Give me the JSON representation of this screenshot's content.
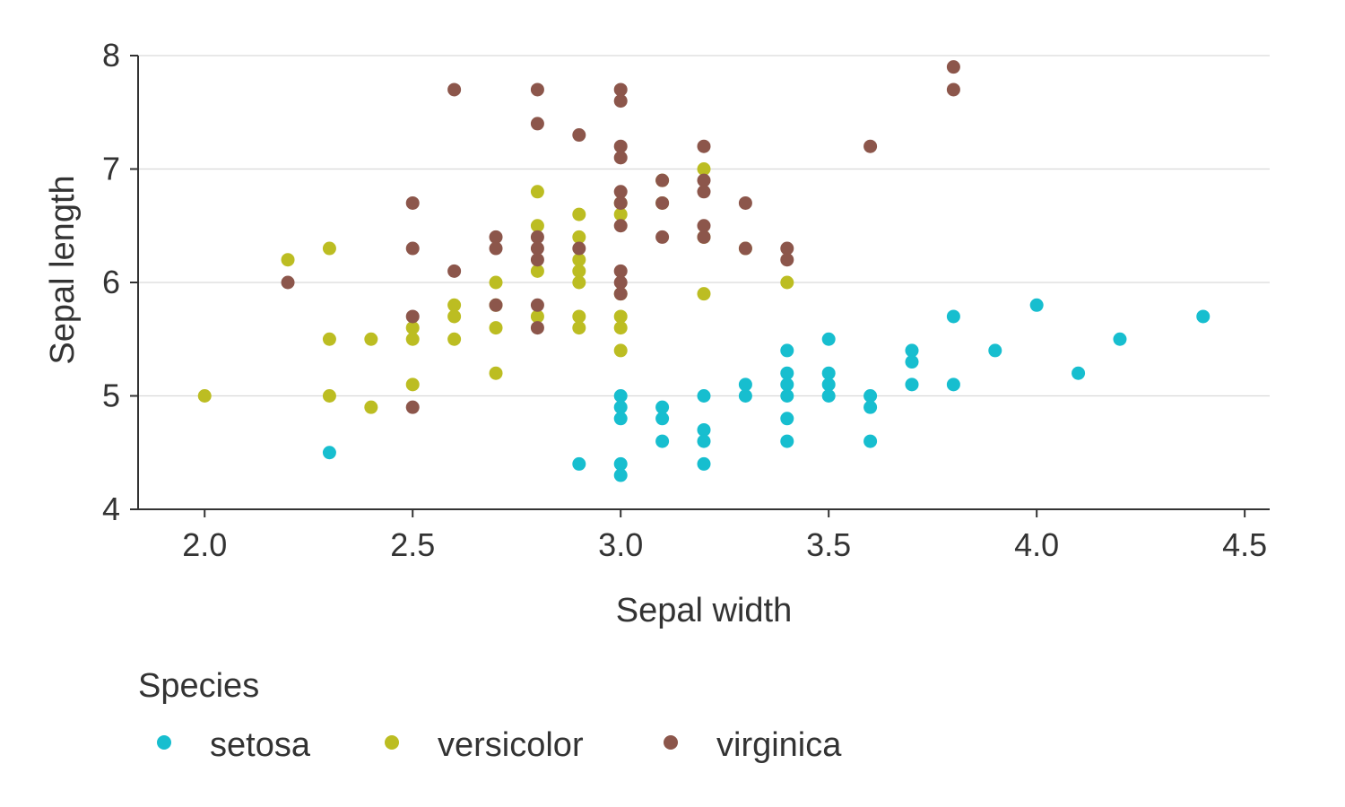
{
  "chart_data": {
    "type": "scatter",
    "title": "",
    "xlabel": "Sepal width",
    "ylabel": "Sepal length",
    "xlim": [
      1.84,
      4.56
    ],
    "ylim": [
      4,
      8
    ],
    "xticks": [
      "2.0",
      "2.5",
      "3.0",
      "3.5",
      "4.0",
      "4.5"
    ],
    "yticks": [
      "4",
      "5",
      "6",
      "7",
      "8"
    ],
    "grid": "horizontal",
    "legend": {
      "title": "Species",
      "position": "bottom-left"
    },
    "series": [
      {
        "name": "setosa",
        "color": "#17becf",
        "points": [
          [
            4.4,
            5.7
          ],
          [
            4.2,
            5.5
          ],
          [
            4.1,
            5.2
          ],
          [
            4.0,
            5.8
          ],
          [
            3.9,
            5.4
          ],
          [
            3.8,
            5.7
          ],
          [
            3.8,
            5.1
          ],
          [
            3.7,
            5.4
          ],
          [
            3.7,
            5.3
          ],
          [
            3.7,
            5.1
          ],
          [
            3.6,
            5.0
          ],
          [
            3.6,
            4.9
          ],
          [
            3.6,
            4.6
          ],
          [
            3.5,
            5.5
          ],
          [
            3.5,
            5.2
          ],
          [
            3.5,
            5.1
          ],
          [
            3.5,
            5.0
          ],
          [
            3.4,
            5.4
          ],
          [
            3.4,
            5.2
          ],
          [
            3.4,
            5.1
          ],
          [
            3.4,
            5.0
          ],
          [
            3.4,
            4.8
          ],
          [
            3.4,
            4.6
          ],
          [
            3.3,
            5.1
          ],
          [
            3.3,
            5.0
          ],
          [
            3.2,
            5.0
          ],
          [
            3.2,
            4.7
          ],
          [
            3.2,
            4.6
          ],
          [
            3.2,
            4.4
          ],
          [
            3.1,
            4.9
          ],
          [
            3.1,
            4.8
          ],
          [
            3.1,
            4.6
          ],
          [
            3.0,
            5.0
          ],
          [
            3.0,
            4.9
          ],
          [
            3.0,
            4.8
          ],
          [
            3.0,
            4.4
          ],
          [
            3.0,
            4.3
          ],
          [
            2.9,
            4.4
          ],
          [
            2.3,
            4.5
          ]
        ]
      },
      {
        "name": "versicolor",
        "color": "#bcbd22",
        "points": [
          [
            2.0,
            5.0
          ],
          [
            2.2,
            6.2
          ],
          [
            2.3,
            6.3
          ],
          [
            2.3,
            5.5
          ],
          [
            2.3,
            5.0
          ],
          [
            2.4,
            5.5
          ],
          [
            2.4,
            4.9
          ],
          [
            2.5,
            5.6
          ],
          [
            2.5,
            5.5
          ],
          [
            2.5,
            5.1
          ],
          [
            2.6,
            5.8
          ],
          [
            2.6,
            5.7
          ],
          [
            2.6,
            5.5
          ],
          [
            2.7,
            6.0
          ],
          [
            2.7,
            5.8
          ],
          [
            2.7,
            5.6
          ],
          [
            2.7,
            5.2
          ],
          [
            2.8,
            6.8
          ],
          [
            2.8,
            6.5
          ],
          [
            2.8,
            6.1
          ],
          [
            2.8,
            5.7
          ],
          [
            2.9,
            6.6
          ],
          [
            2.9,
            6.4
          ],
          [
            2.9,
            6.2
          ],
          [
            2.9,
            6.1
          ],
          [
            2.9,
            6.0
          ],
          [
            2.9,
            5.7
          ],
          [
            2.9,
            5.6
          ],
          [
            3.0,
            6.7
          ],
          [
            3.0,
            6.6
          ],
          [
            3.0,
            5.9
          ],
          [
            3.0,
            5.7
          ],
          [
            3.0,
            5.6
          ],
          [
            3.0,
            5.4
          ],
          [
            3.1,
            6.9
          ],
          [
            3.1,
            6.7
          ],
          [
            3.2,
            7.0
          ],
          [
            3.2,
            6.4
          ],
          [
            3.2,
            5.9
          ],
          [
            3.3,
            6.3
          ],
          [
            3.4,
            6.0
          ]
        ]
      },
      {
        "name": "virginica",
        "color": "#8c564b",
        "points": [
          [
            3.8,
            7.9
          ],
          [
            3.8,
            7.7
          ],
          [
            3.6,
            7.2
          ],
          [
            3.4,
            6.3
          ],
          [
            3.4,
            6.2
          ],
          [
            3.3,
            6.7
          ],
          [
            3.3,
            6.3
          ],
          [
            3.2,
            7.2
          ],
          [
            3.2,
            6.9
          ],
          [
            3.2,
            6.8
          ],
          [
            3.2,
            6.5
          ],
          [
            3.2,
            6.4
          ],
          [
            3.1,
            6.9
          ],
          [
            3.1,
            6.7
          ],
          [
            3.1,
            6.4
          ],
          [
            3.0,
            7.7
          ],
          [
            3.0,
            7.6
          ],
          [
            3.0,
            7.2
          ],
          [
            3.0,
            7.1
          ],
          [
            3.0,
            6.8
          ],
          [
            3.0,
            6.7
          ],
          [
            3.0,
            6.5
          ],
          [
            3.0,
            6.1
          ],
          [
            3.0,
            6.0
          ],
          [
            3.0,
            5.9
          ],
          [
            2.9,
            7.3
          ],
          [
            2.9,
            6.3
          ],
          [
            2.8,
            7.7
          ],
          [
            2.8,
            7.4
          ],
          [
            2.8,
            6.4
          ],
          [
            2.8,
            6.3
          ],
          [
            2.8,
            6.2
          ],
          [
            2.8,
            5.8
          ],
          [
            2.8,
            5.6
          ],
          [
            2.7,
            6.4
          ],
          [
            2.7,
            6.3
          ],
          [
            2.7,
            5.8
          ],
          [
            2.6,
            7.7
          ],
          [
            2.6,
            6.1
          ],
          [
            2.5,
            6.7
          ],
          [
            2.5,
            6.3
          ],
          [
            2.5,
            5.7
          ],
          [
            2.5,
            4.9
          ],
          [
            2.2,
            6.0
          ]
        ]
      }
    ]
  }
}
